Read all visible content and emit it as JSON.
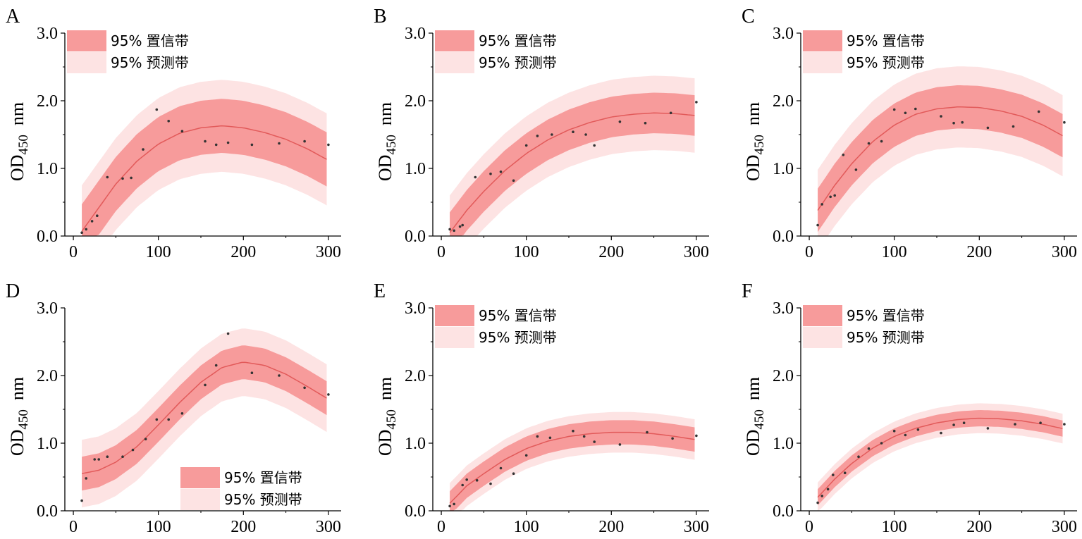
{
  "colors": {
    "confidence_band": "#f79b9b",
    "prediction_band": "#fde3e3",
    "fit_line": "#e25a5a",
    "points": "#333333",
    "axis": "#000000"
  },
  "shared": {
    "ylabel_main": "OD",
    "ylabel_sub": "450",
    "ylabel_unit": "nm",
    "x_ticks": [
      "0",
      "100",
      "200",
      "300"
    ],
    "y_ticks": [
      "0.0",
      "1.0",
      "2.0",
      "3.0"
    ],
    "legend_confidence": "95% 置信带",
    "legend_prediction": "95% 预测带"
  },
  "chart_data": [
    {
      "panel": "A",
      "type": "scatter",
      "xlim": [
        -10,
        315
      ],
      "ylim": [
        0,
        3.0
      ],
      "legend": "top-left",
      "points": [
        [
          10,
          0.05
        ],
        [
          15,
          0.1
        ],
        [
          22,
          0.22
        ],
        [
          28,
          0.3
        ],
        [
          40,
          0.87
        ],
        [
          58,
          0.85
        ],
        [
          68,
          0.86
        ],
        [
          82,
          1.28
        ],
        [
          98,
          1.87
        ],
        [
          112,
          1.7
        ],
        [
          128,
          1.55
        ],
        [
          155,
          1.4
        ],
        [
          168,
          1.35
        ],
        [
          182,
          1.38
        ],
        [
          210,
          1.35
        ],
        [
          242,
          1.37
        ],
        [
          272,
          1.4
        ],
        [
          300,
          1.35
        ]
      ],
      "fit": [
        [
          10,
          0.07
        ],
        [
          30,
          0.42
        ],
        [
          50,
          0.77
        ],
        [
          75,
          1.11
        ],
        [
          100,
          1.36
        ],
        [
          125,
          1.52
        ],
        [
          150,
          1.6
        ],
        [
          175,
          1.63
        ],
        [
          200,
          1.6
        ],
        [
          225,
          1.53
        ],
        [
          250,
          1.43
        ],
        [
          275,
          1.29
        ],
        [
          300,
          1.12
        ]
      ],
      "ci_halfwidth": 0.4,
      "pi_halfwidth": 0.68
    },
    {
      "panel": "B",
      "type": "scatter",
      "xlim": [
        -10,
        315
      ],
      "ylim": [
        0,
        3.0
      ],
      "legend": "top-left",
      "points": [
        [
          10,
          0.1
        ],
        [
          15,
          0.08
        ],
        [
          22,
          0.14
        ],
        [
          25,
          0.16
        ],
        [
          40,
          0.87
        ],
        [
          58,
          0.92
        ],
        [
          70,
          0.95
        ],
        [
          85,
          0.82
        ],
        [
          100,
          1.34
        ],
        [
          113,
          1.48
        ],
        [
          130,
          1.5
        ],
        [
          155,
          1.54
        ],
        [
          170,
          1.5
        ],
        [
          180,
          1.34
        ],
        [
          210,
          1.69
        ],
        [
          240,
          1.67
        ],
        [
          270,
          1.82
        ],
        [
          300,
          1.98
        ]
      ],
      "fit": [
        [
          10,
          0.05
        ],
        [
          30,
          0.38
        ],
        [
          50,
          0.66
        ],
        [
          75,
          0.97
        ],
        [
          100,
          1.22
        ],
        [
          125,
          1.42
        ],
        [
          150,
          1.57
        ],
        [
          175,
          1.68
        ],
        [
          200,
          1.76
        ],
        [
          225,
          1.8
        ],
        [
          250,
          1.82
        ],
        [
          275,
          1.81
        ],
        [
          300,
          1.78
        ]
      ],
      "ci_halfwidth": 0.3,
      "pi_halfwidth": 0.55
    },
    {
      "panel": "C",
      "type": "scatter",
      "xlim": [
        -10,
        315
      ],
      "ylim": [
        0,
        3.0
      ],
      "legend": "top-left",
      "points": [
        [
          10,
          0.16
        ],
        [
          15,
          0.47
        ],
        [
          25,
          0.58
        ],
        [
          30,
          0.6
        ],
        [
          40,
          1.2
        ],
        [
          55,
          0.98
        ],
        [
          70,
          1.37
        ],
        [
          85,
          1.4
        ],
        [
          100,
          1.87
        ],
        [
          113,
          1.82
        ],
        [
          125,
          1.88
        ],
        [
          155,
          1.77
        ],
        [
          170,
          1.67
        ],
        [
          180,
          1.68
        ],
        [
          210,
          1.6
        ],
        [
          240,
          1.62
        ],
        [
          270,
          1.84
        ],
        [
          300,
          1.68
        ]
      ],
      "fit": [
        [
          10,
          0.38
        ],
        [
          30,
          0.75
        ],
        [
          50,
          1.07
        ],
        [
          75,
          1.4
        ],
        [
          100,
          1.64
        ],
        [
          125,
          1.8
        ],
        [
          150,
          1.88
        ],
        [
          175,
          1.91
        ],
        [
          200,
          1.9
        ],
        [
          225,
          1.85
        ],
        [
          250,
          1.77
        ],
        [
          275,
          1.64
        ],
        [
          300,
          1.47
        ]
      ],
      "ci_halfwidth": 0.32,
      "pi_halfwidth": 0.6
    },
    {
      "panel": "D",
      "type": "scatter",
      "xlim": [
        -10,
        315
      ],
      "ylim": [
        0,
        3.0
      ],
      "legend": "bottom-right",
      "points": [
        [
          10,
          0.15
        ],
        [
          15,
          0.48
        ],
        [
          25,
          0.76
        ],
        [
          30,
          0.76
        ],
        [
          40,
          0.8
        ],
        [
          58,
          0.8
        ],
        [
          70,
          0.9
        ],
        [
          85,
          1.06
        ],
        [
          98,
          1.35
        ],
        [
          112,
          1.35
        ],
        [
          128,
          1.44
        ],
        [
          155,
          1.86
        ],
        [
          168,
          2.15
        ],
        [
          182,
          2.62
        ],
        [
          210,
          2.04
        ],
        [
          242,
          2.0
        ],
        [
          272,
          1.82
        ],
        [
          300,
          1.72
        ]
      ],
      "fit": [
        [
          10,
          0.55
        ],
        [
          30,
          0.6
        ],
        [
          50,
          0.72
        ],
        [
          75,
          0.95
        ],
        [
          100,
          1.27
        ],
        [
          125,
          1.6
        ],
        [
          150,
          1.9
        ],
        [
          175,
          2.12
        ],
        [
          200,
          2.2
        ],
        [
          225,
          2.15
        ],
        [
          250,
          2.02
        ],
        [
          275,
          1.84
        ],
        [
          300,
          1.65
        ]
      ],
      "ci_halfwidth": 0.25,
      "pi_halfwidth": 0.5
    },
    {
      "panel": "E",
      "type": "scatter",
      "xlim": [
        -10,
        315
      ],
      "ylim": [
        0,
        3.0
      ],
      "legend": "top-left",
      "points": [
        [
          10,
          0.07
        ],
        [
          15,
          0.1
        ],
        [
          25,
          0.38
        ],
        [
          30,
          0.46
        ],
        [
          42,
          0.45
        ],
        [
          58,
          0.4
        ],
        [
          70,
          0.63
        ],
        [
          85,
          0.55
        ],
        [
          100,
          0.82
        ],
        [
          113,
          1.1
        ],
        [
          128,
          1.08
        ],
        [
          155,
          1.18
        ],
        [
          168,
          1.1
        ],
        [
          180,
          1.02
        ],
        [
          210,
          0.98
        ],
        [
          242,
          1.16
        ],
        [
          272,
          1.07
        ],
        [
          300,
          1.11
        ]
      ],
      "fit": [
        [
          10,
          0.11
        ],
        [
          30,
          0.37
        ],
        [
          50,
          0.55
        ],
        [
          75,
          0.76
        ],
        [
          100,
          0.92
        ],
        [
          125,
          1.03
        ],
        [
          150,
          1.1
        ],
        [
          175,
          1.14
        ],
        [
          200,
          1.16
        ],
        [
          225,
          1.16
        ],
        [
          250,
          1.14
        ],
        [
          275,
          1.1
        ],
        [
          300,
          1.05
        ]
      ],
      "ci_halfwidth": 0.18,
      "pi_halfwidth": 0.3
    },
    {
      "panel": "F",
      "type": "scatter",
      "xlim": [
        -10,
        315
      ],
      "ylim": [
        0,
        3.0
      ],
      "legend": "top-left",
      "points": [
        [
          10,
          0.12
        ],
        [
          15,
          0.22
        ],
        [
          22,
          0.32
        ],
        [
          28,
          0.53
        ],
        [
          42,
          0.56
        ],
        [
          58,
          0.8
        ],
        [
          70,
          0.92
        ],
        [
          85,
          1.0
        ],
        [
          100,
          1.18
        ],
        [
          113,
          1.12
        ],
        [
          128,
          1.2
        ],
        [
          155,
          1.15
        ],
        [
          170,
          1.27
        ],
        [
          182,
          1.3
        ],
        [
          210,
          1.22
        ],
        [
          242,
          1.28
        ],
        [
          272,
          1.3
        ],
        [
          300,
          1.28
        ]
      ],
      "fit": [
        [
          10,
          0.2
        ],
        [
          30,
          0.47
        ],
        [
          50,
          0.7
        ],
        [
          75,
          0.93
        ],
        [
          100,
          1.1
        ],
        [
          125,
          1.22
        ],
        [
          150,
          1.3
        ],
        [
          175,
          1.35
        ],
        [
          200,
          1.37
        ],
        [
          225,
          1.36
        ],
        [
          250,
          1.33
        ],
        [
          275,
          1.28
        ],
        [
          300,
          1.21
        ]
      ],
      "ci_halfwidth": 0.12,
      "pi_halfwidth": 0.22
    }
  ]
}
